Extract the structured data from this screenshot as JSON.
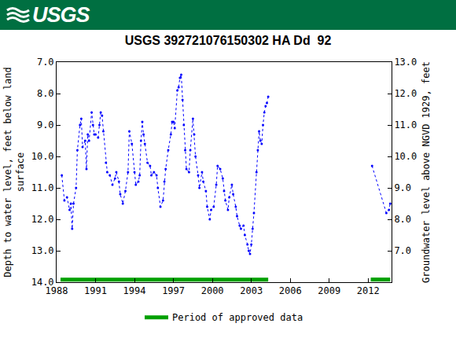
{
  "header": {
    "logo": "USGS"
  },
  "chart_data": {
    "type": "line",
    "title": "USGS 392721076150302 HA Dd  92",
    "y_label": [
      "Depth to water level, feet below land",
      "surface"
    ],
    "y2_label": "Groundwater level above NGVD 1929, feet",
    "color": "#0000ff",
    "marker": "circle",
    "line_style": "dotted",
    "x": [
      1988.4,
      1988.6,
      1988.8,
      1989.0,
      1989.1,
      1989.2,
      1989.3,
      1989.5,
      1989.6,
      1989.8,
      1989.9,
      1990.0,
      1990.2,
      1990.3,
      1990.4,
      1990.5,
      1990.7,
      1990.8,
      1990.9,
      1991.0,
      1991.2,
      1991.3,
      1991.4,
      1991.5,
      1991.6,
      1991.8,
      1991.9,
      1992.1,
      1992.3,
      1992.5,
      1992.6,
      1992.8,
      1992.9,
      1993.1,
      1993.3,
      1993.5,
      1993.6,
      1993.8,
      1994.0,
      1994.1,
      1994.3,
      1994.4,
      1994.5,
      1994.6,
      1994.7,
      1994.8,
      1995.0,
      1995.2,
      1995.3,
      1995.5,
      1995.7,
      1995.8,
      1996.0,
      1996.2,
      1996.3,
      1996.4,
      1996.6,
      1996.8,
      1996.9,
      1997.0,
      1997.1,
      1997.3,
      1997.4,
      1997.5,
      1997.6,
      1997.7,
      1997.8,
      1997.9,
      1998.0,
      1998.2,
      1998.3,
      1998.5,
      1998.6,
      1998.7,
      1998.9,
      1999.0,
      1999.2,
      1999.3,
      1999.5,
      1999.6,
      1999.8,
      1999.9,
      2000.1,
      2000.3,
      2000.4,
      2000.6,
      2000.8,
      2000.9,
      2001.0,
      2001.2,
      2001.3,
      2001.5,
      2001.6,
      2001.8,
      2001.9,
      2002.1,
      2002.2,
      2002.4,
      2002.5,
      2002.7,
      2002.8,
      2002.9,
      2003.0,
      2003.1,
      2003.2,
      2003.4,
      2003.5,
      2003.6,
      2003.7,
      2003.8,
      2003.9,
      2004.0,
      2004.1,
      2004.2,
      2004.3,
      2008.0,
      2012.3,
      2013.4,
      2013.6,
      2013.7
    ],
    "values": [
      10.6,
      11.4,
      11.3,
      11.7,
      11.5,
      12.3,
      11.5,
      11.0,
      9.8,
      9.0,
      8.8,
      9.7,
      9.5,
      10.4,
      9.3,
      9.5,
      8.6,
      9.0,
      9.3,
      9.3,
      9.4,
      9.0,
      8.6,
      8.7,
      9.2,
      10.2,
      10.5,
      10.6,
      10.9,
      10.7,
      10.5,
      10.8,
      11.2,
      11.5,
      11.1,
      10.5,
      9.2,
      9.6,
      10.5,
      10.9,
      10.8,
      10.6,
      9.5,
      8.9,
      9.3,
      9.6,
      10.2,
      10.3,
      10.6,
      10.5,
      10.6,
      11.0,
      11.6,
      11.4,
      10.8,
      10.4,
      9.8,
      9.3,
      8.9,
      8.9,
      9.1,
      7.9,
      7.8,
      7.5,
      7.4,
      8.2,
      9.0,
      9.8,
      10.4,
      10.5,
      9.8,
      8.8,
      9.3,
      10.0,
      10.6,
      11.0,
      10.5,
      10.8,
      11.1,
      11.6,
      12.0,
      11.7,
      11.6,
      10.9,
      10.3,
      10.4,
      10.7,
      11.1,
      11.4,
      11.7,
      11.3,
      10.9,
      11.2,
      11.6,
      11.9,
      12.2,
      12.3,
      12.2,
      12.5,
      12.8,
      13.0,
      13.1,
      12.8,
      12.3,
      11.8,
      10.5,
      9.8,
      9.2,
      9.5,
      9.6,
      9.0,
      8.6,
      8.4,
      8.3,
      8.1,
      null,
      10.3,
      11.8,
      11.7,
      11.5
    ],
    "approved_periods": {
      "name": "Period of approved data",
      "color": "#00a000",
      "ranges": [
        [
          1988.3,
          2004.3
        ],
        [
          2012.2,
          2013.7
        ]
      ]
    },
    "xlim": [
      1988,
      2013.8
    ],
    "xticks": [
      1988,
      1991,
      1994,
      1997,
      2000,
      2003,
      2006,
      2009,
      2012
    ],
    "ylim": [
      14,
      7
    ],
    "yticks": [
      {
        "value": 7,
        "label": "7.0"
      },
      {
        "value": 8,
        "label": "8.0"
      },
      {
        "value": 9,
        "label": "9.0"
      },
      {
        "value": 10,
        "label": "10.0"
      },
      {
        "value": 11,
        "label": "11.0"
      },
      {
        "value": 12,
        "label": "12.0"
      },
      {
        "value": 13,
        "label": "13.0"
      },
      {
        "value": 14,
        "label": "14.0"
      }
    ],
    "y2lim": [
      6,
      13
    ],
    "y2ticks": [
      {
        "value": 7,
        "label": "7.0"
      },
      {
        "value": 8,
        "label": "8.0"
      },
      {
        "value": 9,
        "label": "9.0"
      },
      {
        "value": 10,
        "label": "10.0"
      },
      {
        "value": 11,
        "label": "11.0"
      },
      {
        "value": 12,
        "label": "12.0"
      },
      {
        "value": 13,
        "label": "13.0"
      }
    ],
    "grid": false,
    "legend": "bottom"
  }
}
